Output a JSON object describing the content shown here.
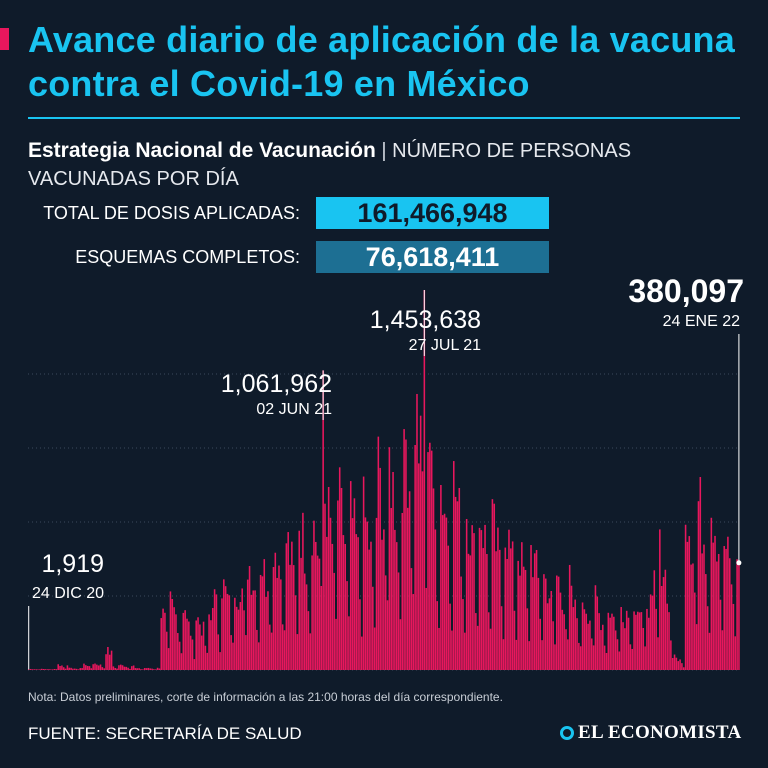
{
  "header": {
    "title": "Avance diario de aplicación de la vacuna contra el Covid-19 en México"
  },
  "subtitle": {
    "strong": "Estrategia Nacional de Vacunación",
    "separator": "|",
    "light": "NÚMERO DE PERSONAS VACUNADAS POR DÍA"
  },
  "stats": {
    "total_label": "TOTAL DE DOSIS APLICADAS:",
    "total_value": "161,466,948",
    "complete_label": "ESQUEMAS COMPLETOS:",
    "complete_value": "76,618,411"
  },
  "colors": {
    "background": "#0f1b2a",
    "accent": "#19c4f1",
    "bars": "#e8175d",
    "box_dark": "#1d6f93"
  },
  "chart_data": {
    "type": "bar",
    "ylim": [
      0,
      1600000
    ],
    "grid": true,
    "x_start": "24 DIC 20",
    "x_end": "24 ENE 22",
    "annotations": [
      {
        "value": "1,919",
        "date": "24 DIC 20",
        "index": 0
      },
      {
        "value": "1,061,962",
        "date": "02 JUN 21",
        "index": 160
      },
      {
        "value": "1,453,638",
        "date": "27 JUL 21",
        "index": 215
      },
      {
        "value": "380,097",
        "date": "24 ENE 22",
        "index": 396
      }
    ],
    "segments": [
      {
        "days": 16,
        "base": 3000
      },
      {
        "days": 6,
        "base": 18000
      },
      {
        "days": 8,
        "base": 6000
      },
      {
        "days": 12,
        "base": 20000
      },
      {
        "days": 4,
        "base": 60000
      },
      {
        "days": 12,
        "base": 15000
      },
      {
        "days": 14,
        "base": 6000
      },
      {
        "days": 14,
        "base": 200000
      },
      {
        "days": 14,
        "base": 160000
      },
      {
        "days": 15,
        "base": 260000
      },
      {
        "days": 15,
        "base": 330000
      },
      {
        "days": 15,
        "base": 390000
      },
      {
        "days": 15,
        "base": 450000
      },
      {
        "days": 15,
        "base": 520000
      },
      {
        "days": 15,
        "base": 470000
      },
      {
        "days": 15,
        "base": 620000
      },
      {
        "days": 15,
        "base": 780000
      },
      {
        "days": 15,
        "base": 560000
      },
      {
        "days": 15,
        "base": 480000
      },
      {
        "days": 15,
        "base": 430000
      },
      {
        "days": 15,
        "base": 360000
      },
      {
        "days": 15,
        "base": 280000
      },
      {
        "days": 15,
        "base": 220000
      },
      {
        "days": 15,
        "base": 190000
      },
      {
        "days": 15,
        "base": 220000
      },
      {
        "days": 10,
        "base": 350000
      },
      {
        "days": 7,
        "base": 40000
      },
      {
        "days": 20,
        "base": 500000
      },
      {
        "days": 9,
        "base": 380000
      }
    ],
    "weekly_pattern": [
      1.18,
      1.12,
      1.04,
      0.96,
      0.86,
      0.55,
      0.32
    ]
  },
  "footer": {
    "note": "Nota: Datos preliminares, corte de información a las 21:00 horas del día correspondiente.",
    "source": "FUENTE: SECRETARÍA DE SALUD",
    "brand": "EL ECONOMISTA"
  }
}
